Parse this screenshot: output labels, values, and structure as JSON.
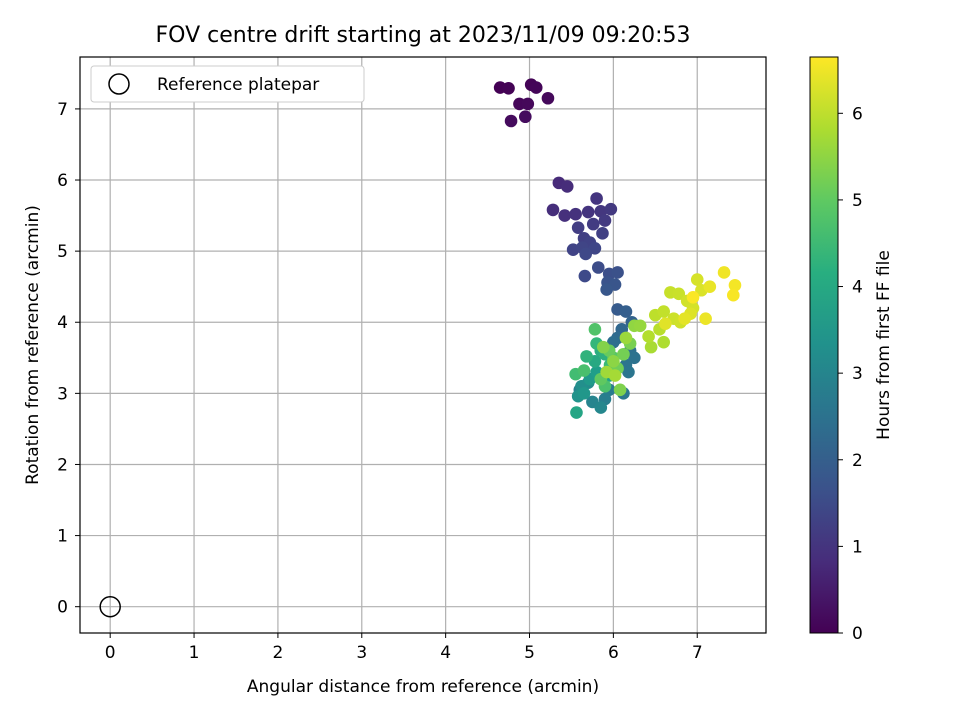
{
  "chart_data": {
    "type": "scatter",
    "title": "FOV centre drift starting at 2023/11/09 09:20:53",
    "xlabel": "Angular distance from reference (arcmin)",
    "ylabel": "Rotation from reference (arcmin)",
    "xlim": [
      -0.36,
      7.82
    ],
    "ylim": [
      -0.37,
      7.73
    ],
    "xticks": [
      0,
      1,
      2,
      3,
      4,
      5,
      6,
      7
    ],
    "yticks": [
      0,
      1,
      2,
      3,
      4,
      5,
      6,
      7
    ],
    "grid": true,
    "legend": {
      "placement": "upper-left",
      "entries": [
        "Reference platepar"
      ]
    },
    "reference_point": {
      "x": 0,
      "y": 0,
      "label": "Reference platepar"
    },
    "colorbar": {
      "label": "Hours from first FF file",
      "colormap": "viridis",
      "range": [
        0,
        6.65
      ],
      "ticks": [
        0,
        1,
        2,
        3,
        4,
        5,
        6
      ]
    },
    "points": [
      {
        "x": 4.65,
        "y": 7.3,
        "h": 0.0
      },
      {
        "x": 4.75,
        "y": 7.29,
        "h": 0.03
      },
      {
        "x": 5.02,
        "y": 7.34,
        "h": 0.05
      },
      {
        "x": 5.08,
        "y": 7.3,
        "h": 0.08
      },
      {
        "x": 4.88,
        "y": 7.07,
        "h": 0.1
      },
      {
        "x": 4.98,
        "y": 7.07,
        "h": 0.13
      },
      {
        "x": 5.22,
        "y": 7.15,
        "h": 0.15
      },
      {
        "x": 4.78,
        "y": 6.83,
        "h": 0.18
      },
      {
        "x": 4.95,
        "y": 6.89,
        "h": 0.2
      },
      {
        "x": 5.35,
        "y": 5.96,
        "h": 0.8
      },
      {
        "x": 5.45,
        "y": 5.91,
        "h": 0.84
      },
      {
        "x": 5.28,
        "y": 5.58,
        "h": 0.88
      },
      {
        "x": 5.42,
        "y": 5.5,
        "h": 0.92
      },
      {
        "x": 5.55,
        "y": 5.52,
        "h": 0.95
      },
      {
        "x": 5.7,
        "y": 5.55,
        "h": 1.0
      },
      {
        "x": 5.8,
        "y": 5.74,
        "h": 1.03
      },
      {
        "x": 5.85,
        "y": 5.56,
        "h": 1.06
      },
      {
        "x": 5.97,
        "y": 5.59,
        "h": 1.1
      },
      {
        "x": 5.9,
        "y": 5.43,
        "h": 1.13
      },
      {
        "x": 5.76,
        "y": 5.38,
        "h": 1.16
      },
      {
        "x": 5.58,
        "y": 5.33,
        "h": 1.2
      },
      {
        "x": 5.65,
        "y": 5.18,
        "h": 1.23
      },
      {
        "x": 5.87,
        "y": 5.25,
        "h": 1.26
      },
      {
        "x": 5.72,
        "y": 5.12,
        "h": 1.3
      },
      {
        "x": 5.52,
        "y": 5.02,
        "h": 1.33
      },
      {
        "x": 5.63,
        "y": 5.05,
        "h": 1.36
      },
      {
        "x": 5.78,
        "y": 5.04,
        "h": 1.4
      },
      {
        "x": 5.67,
        "y": 4.96,
        "h": 1.43
      },
      {
        "x": 5.66,
        "y": 4.65,
        "h": 1.48
      },
      {
        "x": 5.82,
        "y": 4.77,
        "h": 1.55
      },
      {
        "x": 5.95,
        "y": 4.68,
        "h": 1.6
      },
      {
        "x": 6.05,
        "y": 4.7,
        "h": 1.65
      },
      {
        "x": 5.93,
        "y": 4.56,
        "h": 1.7
      },
      {
        "x": 6.02,
        "y": 4.53,
        "h": 1.75
      },
      {
        "x": 5.92,
        "y": 4.46,
        "h": 1.8
      },
      {
        "x": 6.05,
        "y": 4.18,
        "h": 1.9
      },
      {
        "x": 6.15,
        "y": 4.15,
        "h": 2.0
      },
      {
        "x": 6.22,
        "y": 4.0,
        "h": 2.1
      },
      {
        "x": 6.1,
        "y": 3.9,
        "h": 2.2
      },
      {
        "x": 6.05,
        "y": 3.78,
        "h": 2.3
      },
      {
        "x": 6.0,
        "y": 3.72,
        "h": 2.4
      },
      {
        "x": 6.2,
        "y": 3.6,
        "h": 2.45
      },
      {
        "x": 6.25,
        "y": 3.5,
        "h": 2.5
      },
      {
        "x": 6.15,
        "y": 3.4,
        "h": 2.55
      },
      {
        "x": 6.18,
        "y": 3.3,
        "h": 2.6
      },
      {
        "x": 6.12,
        "y": 3.0,
        "h": 2.65
      },
      {
        "x": 5.95,
        "y": 3.05,
        "h": 2.75
      },
      {
        "x": 5.9,
        "y": 2.92,
        "h": 2.85
      },
      {
        "x": 5.6,
        "y": 3.05,
        "h": 2.9
      },
      {
        "x": 5.75,
        "y": 2.88,
        "h": 3.0
      },
      {
        "x": 5.85,
        "y": 2.8,
        "h": 3.1
      },
      {
        "x": 5.7,
        "y": 3.15,
        "h": 3.2
      },
      {
        "x": 5.62,
        "y": 3.1,
        "h": 3.3
      },
      {
        "x": 5.58,
        "y": 2.96,
        "h": 3.4
      },
      {
        "x": 5.65,
        "y": 3.0,
        "h": 3.5
      },
      {
        "x": 5.72,
        "y": 3.2,
        "h": 3.6
      },
      {
        "x": 5.8,
        "y": 3.3,
        "h": 3.7
      },
      {
        "x": 5.95,
        "y": 3.25,
        "h": 3.8
      },
      {
        "x": 5.56,
        "y": 2.73,
        "h": 3.9
      },
      {
        "x": 5.78,
        "y": 3.45,
        "h": 4.0
      },
      {
        "x": 5.85,
        "y": 3.6,
        "h": 4.1
      },
      {
        "x": 5.9,
        "y": 3.55,
        "h": 4.2
      },
      {
        "x": 5.68,
        "y": 3.52,
        "h": 4.3
      },
      {
        "x": 5.8,
        "y": 3.7,
        "h": 4.4
      },
      {
        "x": 5.96,
        "y": 3.4,
        "h": 4.5
      },
      {
        "x": 5.55,
        "y": 3.27,
        "h": 4.6
      },
      {
        "x": 5.65,
        "y": 3.32,
        "h": 4.7
      },
      {
        "x": 5.9,
        "y": 3.1,
        "h": 4.75
      },
      {
        "x": 5.78,
        "y": 3.9,
        "h": 4.8
      },
      {
        "x": 6.0,
        "y": 3.5,
        "h": 4.9
      },
      {
        "x": 5.85,
        "y": 3.2,
        "h": 5.0
      },
      {
        "x": 5.95,
        "y": 3.6,
        "h": 5.1
      },
      {
        "x": 6.05,
        "y": 3.35,
        "h": 5.2
      },
      {
        "x": 6.12,
        "y": 3.55,
        "h": 5.25
      },
      {
        "x": 6.2,
        "y": 3.7,
        "h": 5.3
      },
      {
        "x": 6.08,
        "y": 3.05,
        "h": 5.35
      },
      {
        "x": 5.88,
        "y": 3.65,
        "h": 5.4
      },
      {
        "x": 6.0,
        "y": 3.45,
        "h": 5.5
      },
      {
        "x": 6.25,
        "y": 3.95,
        "h": 5.55
      },
      {
        "x": 6.32,
        "y": 3.95,
        "h": 5.6
      },
      {
        "x": 6.15,
        "y": 3.78,
        "h": 5.65
      },
      {
        "x": 5.92,
        "y": 3.3,
        "h": 5.7
      },
      {
        "x": 6.02,
        "y": 3.25,
        "h": 5.75
      },
      {
        "x": 6.45,
        "y": 3.65,
        "h": 5.8
      },
      {
        "x": 6.6,
        "y": 3.72,
        "h": 5.85
      },
      {
        "x": 6.42,
        "y": 3.8,
        "h": 5.9
      },
      {
        "x": 6.55,
        "y": 3.9,
        "h": 5.95
      },
      {
        "x": 6.5,
        "y": 4.1,
        "h": 6.0
      },
      {
        "x": 6.6,
        "y": 4.15,
        "h": 6.05
      },
      {
        "x": 6.68,
        "y": 4.42,
        "h": 6.1
      },
      {
        "x": 6.78,
        "y": 4.4,
        "h": 6.12
      },
      {
        "x": 6.72,
        "y": 4.05,
        "h": 6.15
      },
      {
        "x": 6.8,
        "y": 4.0,
        "h": 6.18
      },
      {
        "x": 6.88,
        "y": 4.3,
        "h": 6.2
      },
      {
        "x": 6.95,
        "y": 4.2,
        "h": 6.23
      },
      {
        "x": 7.0,
        "y": 4.6,
        "h": 6.26
      },
      {
        "x": 7.05,
        "y": 4.45,
        "h": 6.3
      },
      {
        "x": 6.92,
        "y": 4.12,
        "h": 6.33
      },
      {
        "x": 6.62,
        "y": 3.98,
        "h": 6.36
      },
      {
        "x": 6.85,
        "y": 4.05,
        "h": 6.4
      },
      {
        "x": 7.15,
        "y": 4.5,
        "h": 6.45
      },
      {
        "x": 7.1,
        "y": 4.05,
        "h": 6.48
      },
      {
        "x": 7.32,
        "y": 4.7,
        "h": 6.52
      },
      {
        "x": 7.45,
        "y": 4.52,
        "h": 6.56
      },
      {
        "x": 7.43,
        "y": 4.38,
        "h": 6.6
      },
      {
        "x": 6.95,
        "y": 4.35,
        "h": 6.62
      }
    ]
  },
  "colors": {
    "axis": "#000000",
    "grid": "#b0b0b0",
    "legend_border": "#cccccc"
  }
}
